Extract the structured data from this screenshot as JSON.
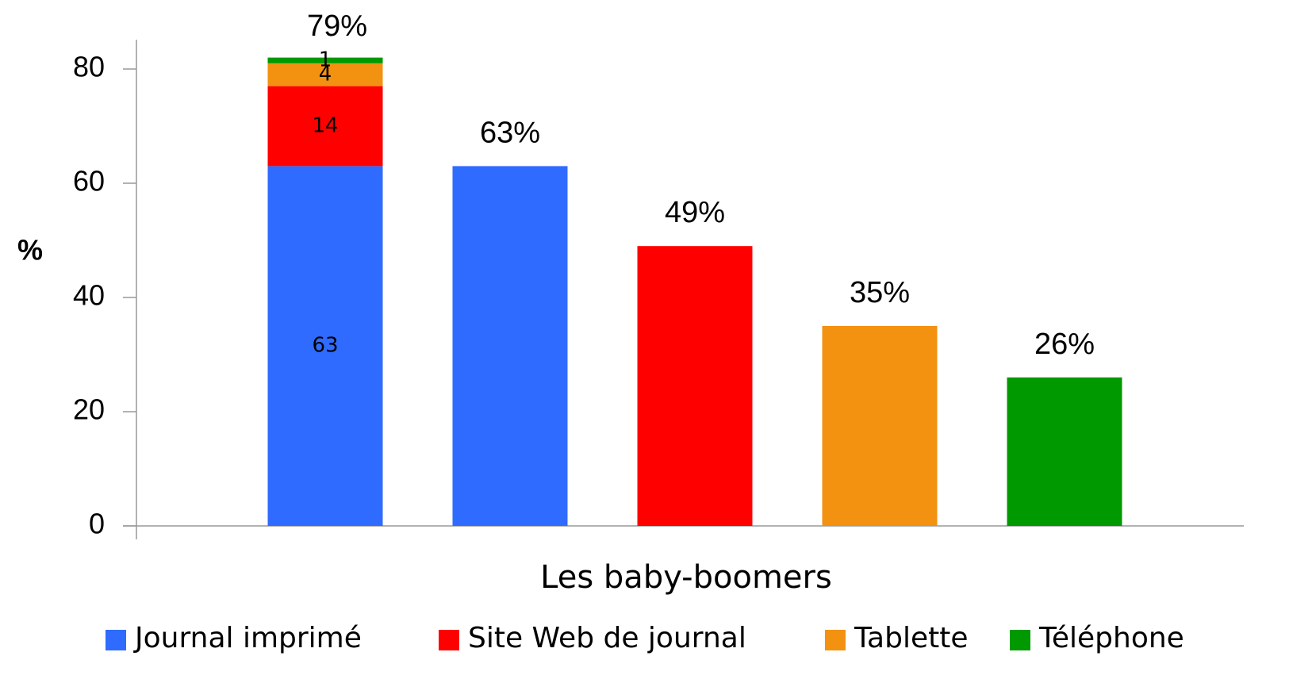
{
  "chart_data": {
    "type": "bar",
    "ylabel": "%",
    "xlabel": "Les baby-boomers",
    "categories": [
      null,
      null,
      null,
      null,
      null
    ],
    "series": [
      {
        "name": "Journal imprimé",
        "color": "#2f6bff",
        "values": [
          63,
          63,
          null,
          null,
          null
        ],
        "value_labels": [
          "63",
          "63%",
          null,
          null,
          null
        ]
      },
      {
        "name": "Site Web de journal",
        "color": "#ff0000",
        "values": [
          14,
          null,
          49,
          null,
          null
        ],
        "value_labels": [
          "14",
          null,
          "49%",
          null,
          null
        ]
      },
      {
        "name": "Tablette",
        "color": "#f39110",
        "values": [
          4,
          null,
          null,
          35,
          null
        ],
        "value_labels": [
          "4",
          null,
          null,
          "35%",
          null
        ]
      },
      {
        "name": "Téléphone",
        "color": "#009900",
        "values": [
          1,
          null,
          null,
          null,
          26
        ],
        "value_labels": [
          "1",
          null,
          null,
          null,
          "26%"
        ]
      }
    ],
    "annotations": [
      {
        "text": "79%",
        "category": 0
      }
    ],
    "ylim": [
      0,
      85
    ],
    "yticks": [
      0,
      20,
      40,
      60,
      80
    ],
    "grid": false,
    "legend": "bottom"
  }
}
